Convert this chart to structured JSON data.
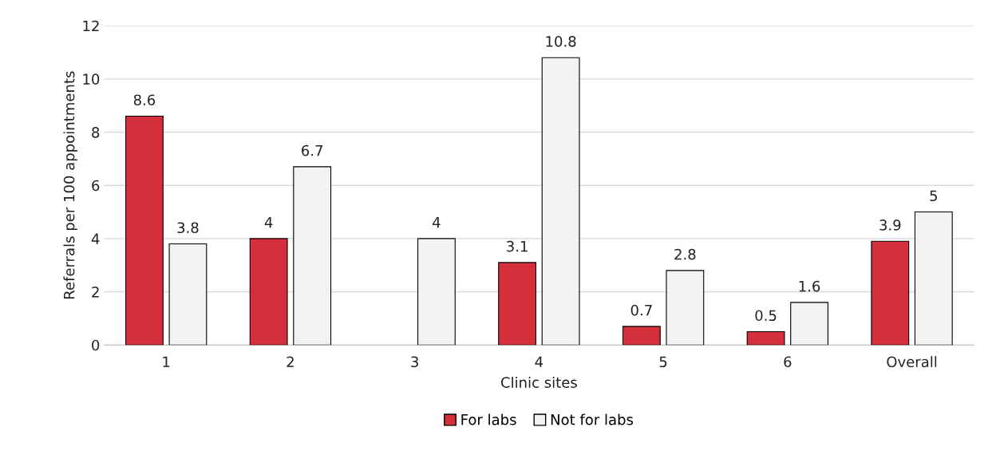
{
  "chart_data": {
    "type": "bar",
    "xlabel": "Clinic sites",
    "ylabel": "Referrals per 100 appointments",
    "categories": [
      "1",
      "2",
      "3",
      "4",
      "5",
      "6",
      "Overall"
    ],
    "series": [
      {
        "name": "For labs",
        "color": "#d62f3c",
        "values": [
          8.6,
          4,
          null,
          3.1,
          0.7,
          0.5,
          3.9
        ]
      },
      {
        "name": "Not for labs",
        "color": "#f2f2f2",
        "values": [
          3.8,
          6.7,
          4,
          10.8,
          2.8,
          1.6,
          5
        ]
      }
    ],
    "ylim": [
      0,
      12
    ],
    "yticks": [
      0,
      2,
      4,
      6,
      8,
      10,
      12
    ],
    "grid": "y",
    "legend": "bottom",
    "data_labels": true
  }
}
